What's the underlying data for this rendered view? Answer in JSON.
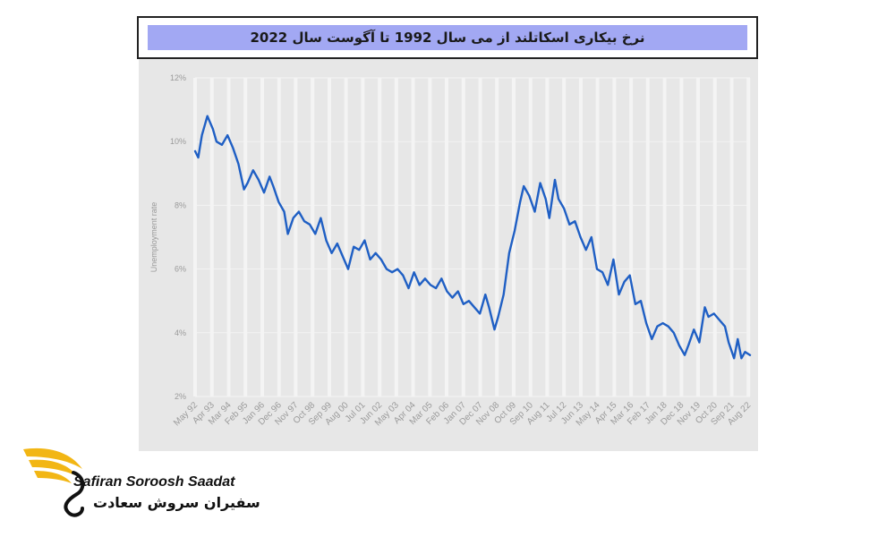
{
  "title": "نرخ بیکاری اسکاتلند از می سال 1992 تا آگوست سال 2022",
  "colors": {
    "title_band": "#a2a8f3",
    "plot_background": "#e7e7e7",
    "line": "#1f5fc4",
    "grid": "#f4f4f4",
    "tick_text": "#9a9a9a",
    "logo_gold": "#f2b614"
  },
  "chart_data": {
    "type": "line",
    "title": "نرخ بیکاری اسکاتلند از می سال 1992 تا آگوست سال 2022",
    "ylabel": "Unemployment rate",
    "xlabel": "",
    "ylim": [
      2,
      12
    ],
    "yticks": [
      2,
      4,
      6,
      8,
      10,
      12
    ],
    "ytick_labels": [
      "2%",
      "4%",
      "6%",
      "8%",
      "10%",
      "12%"
    ],
    "xlim": [
      1992.33,
      2022.67
    ],
    "xtick_labels": [
      "May 92",
      "Apr 93",
      "Mar 94",
      "Feb 95",
      "Jan 96",
      "Dec 96",
      "Nov 97",
      "Oct 98",
      "Sep 99",
      "Aug 00",
      "Jul 01",
      "Jun 02",
      "May 03",
      "Apr 04",
      "Mar 05",
      "Feb 06",
      "Jan 07",
      "Dec 07",
      "Nov 08",
      "Oct 09",
      "Sep 10",
      "Aug 11",
      "Jul 12",
      "Jun 13",
      "May 14",
      "Apr 15",
      "Mar 16",
      "Feb 17",
      "Jan 18",
      "Dec 18",
      "Nov 19",
      "Oct 20",
      "Sep 21",
      "Aug 22"
    ],
    "xtick_positions": [
      1992.33,
      1993.25,
      1994.17,
      1995.08,
      1996.0,
      1996.92,
      1997.83,
      1998.75,
      1999.67,
      2000.58,
      2001.5,
      2002.42,
      2003.33,
      2004.25,
      2005.17,
      2006.08,
      2007.0,
      2007.92,
      2008.83,
      2009.75,
      2010.67,
      2011.58,
      2012.5,
      2013.42,
      2014.33,
      2015.25,
      2016.17,
      2017.08,
      2018.0,
      2018.92,
      2019.83,
      2020.75,
      2021.67,
      2022.58
    ],
    "grid": true,
    "legend": "none",
    "series": [
      {
        "x": [
          1992.33,
          1992.5,
          1992.7,
          1993.0,
          1993.3,
          1993.5,
          1993.8,
          1994.1,
          1994.4,
          1994.7,
          1995.0,
          1995.2,
          1995.5,
          1995.8,
          1996.1,
          1996.4,
          1996.6,
          1996.9,
          1997.2,
          1997.4,
          1997.7,
          1998.0,
          1998.3,
          1998.6,
          1998.9,
          1999.2,
          1999.5,
          1999.8,
          2000.1,
          2000.4,
          2000.7,
          2001.0,
          2001.3,
          2001.6,
          2001.9,
          2002.2,
          2002.5,
          2002.8,
          2003.1,
          2003.4,
          2003.7,
          2004.0,
          2004.3,
          2004.6,
          2004.9,
          2005.2,
          2005.5,
          2005.8,
          2006.1,
          2006.4,
          2006.7,
          2007.0,
          2007.3,
          2007.6,
          2007.9,
          2008.2,
          2008.4,
          2008.7,
          2008.9,
          2009.2,
          2009.5,
          2009.8,
          2010.1,
          2010.3,
          2010.6,
          2010.9,
          2011.2,
          2011.5,
          2011.7,
          2012.0,
          2012.2,
          2012.5,
          2012.8,
          2013.1,
          2013.4,
          2013.7,
          2014.0,
          2014.3,
          2014.6,
          2014.9,
          2015.2,
          2015.5,
          2015.8,
          2016.1,
          2016.4,
          2016.7,
          2017.0,
          2017.3,
          2017.6,
          2017.9,
          2018.2,
          2018.5,
          2018.8,
          2019.1,
          2019.3,
          2019.6,
          2019.9,
          2020.2,
          2020.4,
          2020.7,
          2021.0,
          2021.3,
          2021.5,
          2021.8,
          2022.0,
          2022.2,
          2022.4,
          2022.67
        ],
        "y": [
          9.7,
          9.5,
          10.2,
          10.8,
          10.4,
          10.0,
          9.9,
          10.2,
          9.8,
          9.3,
          8.5,
          8.7,
          9.1,
          8.8,
          8.4,
          8.9,
          8.6,
          8.1,
          7.8,
          7.1,
          7.6,
          7.8,
          7.5,
          7.4,
          7.1,
          7.6,
          6.9,
          6.5,
          6.8,
          6.4,
          6.0,
          6.7,
          6.6,
          6.9,
          6.3,
          6.5,
          6.3,
          6.0,
          5.9,
          6.0,
          5.8,
          5.4,
          5.9,
          5.5,
          5.7,
          5.5,
          5.4,
          5.7,
          5.3,
          5.1,
          5.3,
          4.9,
          5.0,
          4.8,
          4.6,
          5.2,
          4.8,
          4.1,
          4.5,
          5.2,
          6.5,
          7.2,
          8.1,
          8.6,
          8.3,
          7.8,
          8.7,
          8.2,
          7.6,
          8.8,
          8.2,
          7.9,
          7.4,
          7.5,
          7.0,
          6.6,
          7.0,
          6.0,
          5.9,
          5.5,
          6.3,
          5.2,
          5.6,
          5.8,
          4.9,
          5.0,
          4.3,
          3.8,
          4.2,
          4.3,
          4.2,
          4.0,
          3.6,
          3.3,
          3.6,
          4.1,
          3.7,
          4.8,
          4.5,
          4.6,
          4.4,
          4.2,
          3.7,
          3.2,
          3.8,
          3.2,
          3.4,
          3.3
        ]
      }
    ]
  },
  "logo": {
    "name_en": "Safiran Soroosh Saadat",
    "name_fa": "سفیران سروش سعادت"
  }
}
